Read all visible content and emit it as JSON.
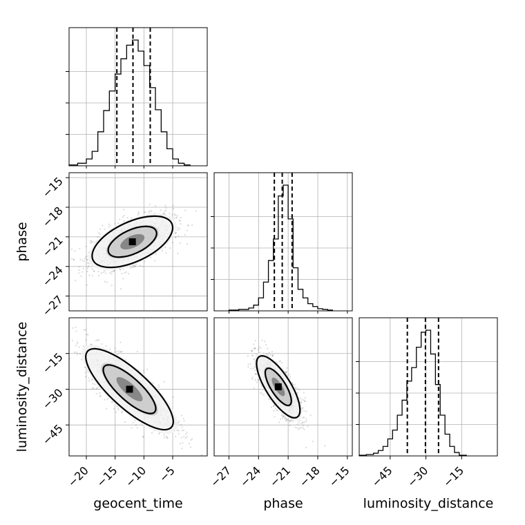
{
  "chart_data": {
    "type": "corner",
    "parameters": [
      "geocent_time",
      "phase",
      "luminosity_distance"
    ],
    "axis_labels": {
      "geocent_time": "geocent_time",
      "phase": "phase",
      "luminosity_distance": "luminosity_distance"
    },
    "ranges": {
      "geocent_time": [
        -23,
        1
      ],
      "phase": [
        -28.5,
        -14.5
      ],
      "luminosity_distance": [
        -58,
        0
      ]
    },
    "ticks": {
      "geocent_time": [
        -20,
        -15,
        -10,
        -5
      ],
      "phase": [
        -27,
        -24,
        -21,
        -18,
        -15
      ],
      "luminosity_distance": [
        -45,
        -30,
        -15
      ]
    },
    "tick_labels": {
      "geocent_time": [
        "−20",
        "−15",
        "−10",
        "−5"
      ],
      "phase": [
        "−27",
        "−24",
        "−21",
        "−18",
        "−15"
      ],
      "luminosity_distance": [
        "−45",
        "−30",
        "−15"
      ]
    },
    "quantiles": {
      "geocent_time": [
        -14.7,
        -11.9,
        -8.9
      ],
      "phase": [
        -22.4,
        -21.6,
        -20.6
      ],
      "luminosity_distance": [
        -37.8,
        -30.2,
        -24.7
      ]
    },
    "histograms": {
      "geocent_time": {
        "bin_edges": [
          -23,
          -21.5,
          -20,
          -19,
          -18,
          -17,
          -16,
          -15,
          -14,
          -13,
          -12,
          -11,
          -10,
          -9,
          -8,
          -7,
          -6,
          -5,
          -4,
          -3,
          -2
        ],
        "counts": [
          1,
          3,
          8,
          17,
          40,
          65,
          88,
          108,
          126,
          142,
          148,
          135,
          118,
          92,
          66,
          40,
          20,
          8,
          3,
          1
        ]
      },
      "phase": {
        "bin_edges": [
          -27,
          -26,
          -25,
          -24.5,
          -24,
          -23.5,
          -23,
          -22.5,
          -22,
          -21.5,
          -21,
          -20.5,
          -20,
          -19.5,
          -19,
          -18.5,
          -18,
          -17.5,
          -17,
          -16.5
        ],
        "counts": [
          1,
          2,
          4,
          8,
          18,
          40,
          70,
          100,
          160,
          175,
          128,
          60,
          30,
          18,
          10,
          6,
          3,
          2,
          1
        ]
      },
      "luminosity_distance": {
        "bin_edges": [
          -58,
          -55,
          -52,
          -50,
          -48,
          -46,
          -44,
          -42,
          -40,
          -38,
          -36,
          -34,
          -32,
          -30,
          -28,
          -26,
          -24,
          -22,
          -20,
          -18,
          -16,
          -13
        ],
        "counts": [
          1,
          2,
          4,
          8,
          14,
          25,
          38,
          60,
          82,
          110,
          130,
          160,
          182,
          185,
          150,
          105,
          60,
          32,
          14,
          5,
          1
        ]
      }
    },
    "joint_density_peaks": {
      "geocent_time_vs_phase": {
        "x": -12,
        "y": -21.5
      },
      "geocent_time_vs_luminosity_distance": {
        "x": -12.5,
        "y": -30
      },
      "phase_vs_luminosity_distance": {
        "x": -22.0,
        "y": -29
      }
    },
    "grid": true
  }
}
